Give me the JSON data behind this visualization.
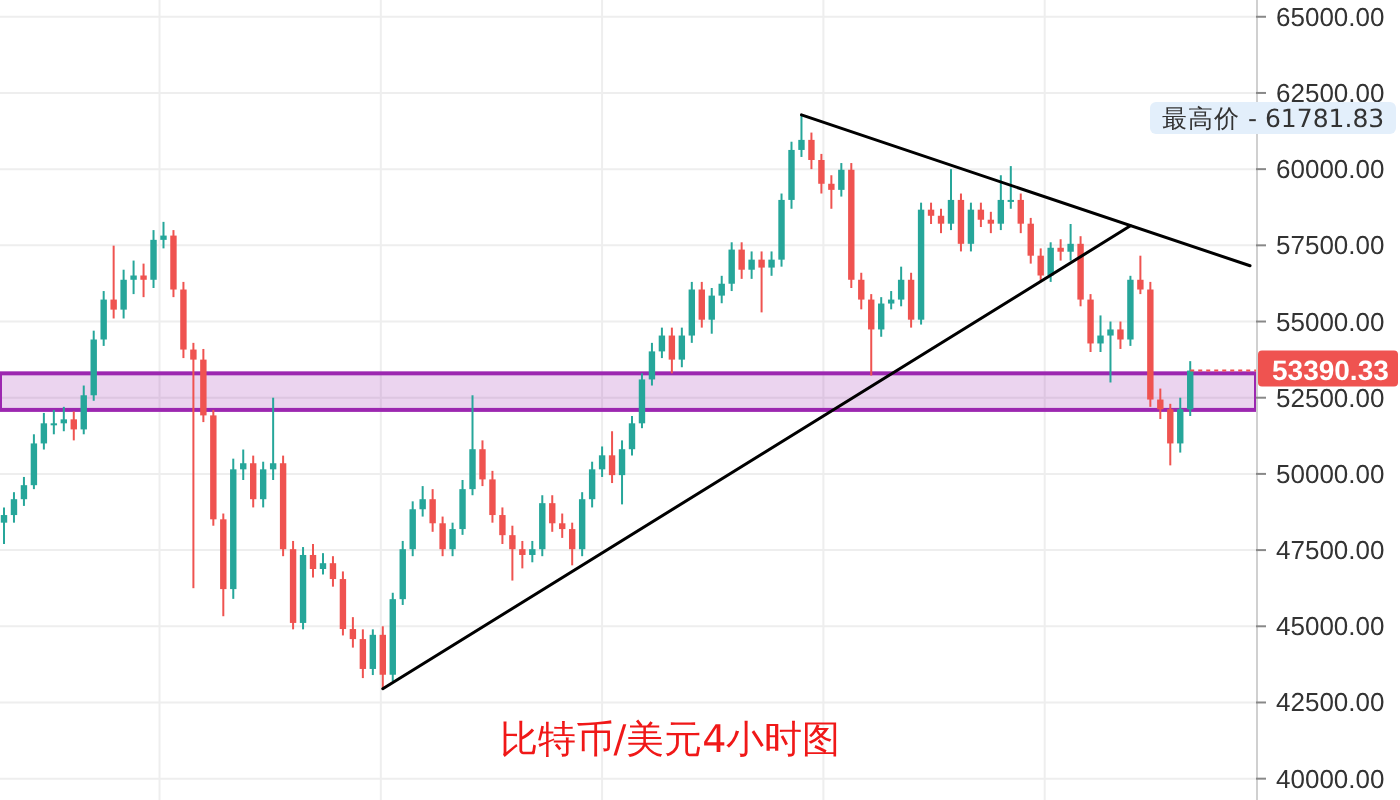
{
  "chart_data": {
    "type": "candlestick",
    "categories": [
      null,
      null,
      null,
      null,
      null,
      null,
      null,
      null,
      null,
      null,
      null,
      null,
      null,
      null,
      null,
      null,
      null,
      null,
      null,
      null,
      null,
      null,
      null,
      null,
      null,
      null,
      null,
      null,
      null,
      null,
      null,
      null,
      null,
      null,
      null,
      null,
      null,
      null,
      null,
      null,
      null,
      null,
      null,
      null,
      null,
      null,
      null,
      null,
      null,
      null,
      null,
      null,
      null,
      null,
      null,
      null,
      null,
      null,
      null,
      null,
      null,
      null,
      null,
      null,
      null,
      null,
      null,
      null,
      null,
      null,
      null,
      null,
      null,
      null,
      null,
      null,
      null,
      null,
      null,
      null,
      null,
      null,
      null,
      null,
      null,
      null,
      null,
      null,
      null,
      null,
      null,
      null,
      null,
      null,
      null,
      null,
      null,
      null,
      null,
      null,
      null,
      null,
      null,
      null,
      null,
      null,
      null,
      null,
      null,
      null,
      null,
      null,
      null,
      null,
      null,
      null,
      null,
      null,
      null,
      null,
      null,
      null,
      null,
      null,
      null,
      null
    ],
    "ohlc": [
      [
        48400,
        48900,
        47700,
        48650
      ],
      [
        48650,
        49400,
        48400,
        49170
      ],
      [
        49170,
        49900,
        48950,
        49630
      ],
      [
        49630,
        51300,
        49500,
        51000
      ],
      [
        51000,
        52000,
        50800,
        51660
      ],
      [
        51660,
        52100,
        51300,
        51660
      ],
      [
        51660,
        52200,
        51400,
        51790
      ],
      [
        51790,
        52050,
        51100,
        51460
      ],
      [
        51460,
        52900,
        51300,
        52580
      ],
      [
        52580,
        54700,
        52400,
        54410
      ],
      [
        54410,
        56000,
        54200,
        55720
      ],
      [
        55720,
        57490,
        55100,
        55390
      ],
      [
        55390,
        56700,
        55100,
        56370
      ],
      [
        56370,
        57000,
        55900,
        56510
      ],
      [
        56510,
        56900,
        55800,
        56370
      ],
      [
        56370,
        58000,
        56100,
        57680
      ],
      [
        57680,
        58270,
        57400,
        57820
      ],
      [
        57820,
        58000,
        55800,
        56050
      ],
      [
        56050,
        56300,
        53800,
        54080
      ],
      [
        54080,
        54300,
        46250,
        53750
      ],
      [
        53750,
        54100,
        51700,
        51920
      ],
      [
        51920,
        52100,
        48300,
        48510
      ],
      [
        48510,
        48700,
        45330,
        46220
      ],
      [
        46220,
        50500,
        45900,
        50150
      ],
      [
        50150,
        50800,
        49800,
        50350
      ],
      [
        50350,
        50600,
        48900,
        49170
      ],
      [
        49170,
        50400,
        48900,
        50150
      ],
      [
        50150,
        52500,
        49800,
        50350
      ],
      [
        50350,
        50600,
        47300,
        47530
      ],
      [
        47530,
        47800,
        44900,
        45110
      ],
      [
        45110,
        47600,
        44900,
        47340
      ],
      [
        47340,
        47700,
        46600,
        46880
      ],
      [
        46880,
        47400,
        46700,
        47070
      ],
      [
        47070,
        47300,
        46300,
        46550
      ],
      [
        46550,
        46800,
        44700,
        44910
      ],
      [
        44910,
        45300,
        44300,
        44580
      ],
      [
        44580,
        44900,
        43300,
        43600
      ],
      [
        43600,
        44900,
        43400,
        44720
      ],
      [
        44720,
        45000,
        42950,
        43410
      ],
      [
        43410,
        46100,
        43200,
        45890
      ],
      [
        45890,
        47800,
        45700,
        47530
      ],
      [
        47530,
        49100,
        47300,
        48840
      ],
      [
        48840,
        49600,
        48600,
        49170
      ],
      [
        49170,
        49500,
        48100,
        48380
      ],
      [
        48380,
        48600,
        47300,
        47530
      ],
      [
        47530,
        48400,
        47300,
        48190
      ],
      [
        48190,
        49800,
        48000,
        49500
      ],
      [
        49500,
        52580,
        49300,
        50810
      ],
      [
        50810,
        51100,
        49600,
        49820
      ],
      [
        49820,
        50100,
        48400,
        48650
      ],
      [
        48650,
        48900,
        47700,
        47990
      ],
      [
        47990,
        48300,
        46500,
        47530
      ],
      [
        47530,
        47800,
        46900,
        47340
      ],
      [
        47340,
        47800,
        47100,
        47530
      ],
      [
        47530,
        49300,
        47300,
        49040
      ],
      [
        49040,
        49300,
        48100,
        48380
      ],
      [
        48380,
        48700,
        47900,
        48190
      ],
      [
        48190,
        48400,
        47000,
        47530
      ],
      [
        47530,
        49400,
        47300,
        49170
      ],
      [
        49170,
        50400,
        48900,
        50150
      ],
      [
        50150,
        50900,
        49900,
        50610
      ],
      [
        50610,
        51400,
        49700,
        49960
      ],
      [
        49960,
        51100,
        49000,
        50810
      ],
      [
        50810,
        51900,
        50600,
        51660
      ],
      [
        51660,
        53300,
        51500,
        53100
      ],
      [
        53100,
        54300,
        52900,
        54020
      ],
      [
        54020,
        54800,
        53800,
        54540
      ],
      [
        54540,
        54800,
        53300,
        53750
      ],
      [
        53750,
        54800,
        53500,
        54540
      ],
      [
        54540,
        56300,
        54300,
        56050
      ],
      [
        56050,
        56300,
        54800,
        55060
      ],
      [
        55060,
        56100,
        54600,
        55850
      ],
      [
        55850,
        56500,
        55600,
        56240
      ],
      [
        56240,
        57600,
        56000,
        57360
      ],
      [
        57360,
        57600,
        56400,
        56700
      ],
      [
        56700,
        57300,
        56400,
        57030
      ],
      [
        57030,
        57300,
        55300,
        56770
      ],
      [
        56770,
        57300,
        56500,
        57030
      ],
      [
        57030,
        59200,
        56800,
        58990
      ],
      [
        58990,
        60900,
        58700,
        60630
      ],
      [
        60630,
        61781.83,
        60400,
        60960
      ],
      [
        60960,
        61200,
        60000,
        60300
      ],
      [
        60300,
        60500,
        59200,
        59520
      ],
      [
        59520,
        59800,
        58700,
        59320
      ],
      [
        59320,
        60200,
        59100,
        59980
      ],
      [
        59980,
        60200,
        56100,
        56370
      ],
      [
        56370,
        56600,
        55400,
        55720
      ],
      [
        55720,
        55900,
        53230,
        54740
      ],
      [
        54740,
        55800,
        54500,
        55590
      ],
      [
        55590,
        56000,
        55400,
        55720
      ],
      [
        55720,
        56800,
        55500,
        56370
      ],
      [
        56370,
        56600,
        54800,
        55060
      ],
      [
        55060,
        58900,
        54900,
        58670
      ],
      [
        58670,
        58900,
        58200,
        58470
      ],
      [
        58470,
        58700,
        57900,
        58210
      ],
      [
        58210,
        60000,
        58000,
        58990
      ],
      [
        58990,
        59200,
        57300,
        57550
      ],
      [
        57550,
        58900,
        57300,
        58670
      ],
      [
        58670,
        58900,
        58100,
        58340
      ],
      [
        58340,
        58600,
        57900,
        58210
      ],
      [
        58210,
        59800,
        58000,
        58990
      ],
      [
        58990,
        60100,
        58700,
        58990
      ],
      [
        58990,
        59200,
        57900,
        58210
      ],
      [
        58210,
        58400,
        56900,
        57160
      ],
      [
        57160,
        57400,
        56300,
        56510
      ],
      [
        56510,
        57600,
        56300,
        57420
      ],
      [
        57420,
        57700,
        57000,
        57290
      ],
      [
        57290,
        58200,
        57000,
        57550
      ],
      [
        57550,
        57800,
        55500,
        55720
      ],
      [
        55720,
        55900,
        54000,
        54280
      ],
      [
        54280,
        55200,
        54000,
        54540
      ],
      [
        54540,
        55000,
        53000,
        54740
      ],
      [
        54740,
        55000,
        54100,
        54410
      ],
      [
        54410,
        56500,
        54200,
        56370
      ],
      [
        56370,
        57160,
        55900,
        56050
      ],
      [
        56050,
        56300,
        52200,
        52440
      ],
      [
        52440,
        52800,
        51800,
        52120
      ],
      [
        52120,
        52300,
        50280,
        51000
      ],
      [
        51000,
        52500,
        50700,
        52120
      ],
      [
        52120,
        53700,
        51900,
        53390.33
      ],
      null,
      null,
      null,
      null,
      null,
      null
    ],
    "series": [
      {
        "type": "line",
        "color": "#000000",
        "values": [
          null,
          null,
          null,
          null,
          null,
          null,
          null,
          null,
          null,
          null,
          null,
          null,
          null,
          null,
          null,
          null,
          null,
          null,
          null,
          null,
          null,
          null,
          null,
          null,
          null,
          null,
          null,
          null,
          null,
          null,
          null,
          null,
          null,
          null,
          null,
          null,
          null,
          null,
          42950,
          null,
          null,
          null,
          null,
          null,
          null,
          null,
          null,
          null,
          null,
          null,
          null,
          null,
          null,
          null,
          null,
          null,
          null,
          null,
          null,
          null,
          null,
          null,
          null,
          null,
          null,
          null,
          null,
          null,
          null,
          null,
          null,
          null,
          null,
          null,
          null,
          null,
          null,
          null,
          null,
          null,
          null,
          null,
          null,
          null,
          null,
          null,
          null,
          null,
          null,
          null,
          null,
          null,
          null,
          null,
          null,
          null,
          null,
          null,
          null,
          null,
          null,
          null,
          null,
          null,
          null,
          null,
          null,
          null,
          null,
          null,
          null,
          null,
          null,
          58140,
          null,
          null,
          null,
          null,
          null,
          null,
          null,
          null,
          null,
          null,
          null,
          null
        ]
      },
      {
        "type": "line",
        "color": "#000000",
        "values": [
          null,
          null,
          null,
          null,
          null,
          null,
          null,
          null,
          null,
          null,
          null,
          null,
          null,
          null,
          null,
          null,
          null,
          null,
          null,
          null,
          null,
          null,
          null,
          null,
          null,
          null,
          null,
          null,
          null,
          null,
          null,
          null,
          null,
          null,
          null,
          null,
          null,
          null,
          null,
          null,
          null,
          null,
          null,
          null,
          null,
          null,
          null,
          null,
          null,
          null,
          null,
          null,
          null,
          null,
          null,
          null,
          null,
          null,
          null,
          null,
          null,
          null,
          null,
          null,
          null,
          null,
          null,
          null,
          null,
          null,
          null,
          null,
          null,
          null,
          null,
          null,
          null,
          null,
          null,
          null,
          61780,
          null,
          null,
          null,
          null,
          null,
          null,
          null,
          null,
          null,
          null,
          null,
          null,
          null,
          null,
          null,
          null,
          null,
          null,
          null,
          null,
          null,
          null,
          null,
          null,
          null,
          null,
          null,
          null,
          null,
          null,
          null,
          null,
          null,
          null,
          null,
          null,
          null,
          null,
          null,
          null,
          null,
          null,
          null,
          null,
          56830
        ]
      }
    ],
    "ylim": [
      39300,
      65550
    ],
    "yticks": [
      {
        "value": 40000,
        "label": "40000.00"
      },
      {
        "value": 42500,
        "label": "42500.00"
      },
      {
        "value": 45000,
        "label": "45000.00"
      },
      {
        "value": 47500,
        "label": "47500.00"
      },
      {
        "value": 50000,
        "label": "50000.00"
      },
      {
        "value": 52500,
        "label": "52500.00"
      },
      {
        "value": 55000,
        "label": "55000.00"
      },
      {
        "value": 57500,
        "label": "57500.00"
      },
      {
        "value": 60000,
        "label": "60000.00"
      },
      {
        "value": 62500,
        "label": "62500.00"
      },
      {
        "value": 65000,
        "label": "65000.00"
      }
    ],
    "grid": true,
    "bands": [
      {
        "axis": "y",
        "from": 52100,
        "to": 53300,
        "color": "#9c27b0"
      }
    ],
    "ref_lines": [
      {
        "axis": "y",
        "value": 53390.33,
        "label": "53390.33",
        "color": "#ef5350",
        "line_style": "dotted"
      }
    ],
    "annotations": [
      "最高价 - 61781.83",
      "比特币/美元4小时图"
    ]
  }
}
